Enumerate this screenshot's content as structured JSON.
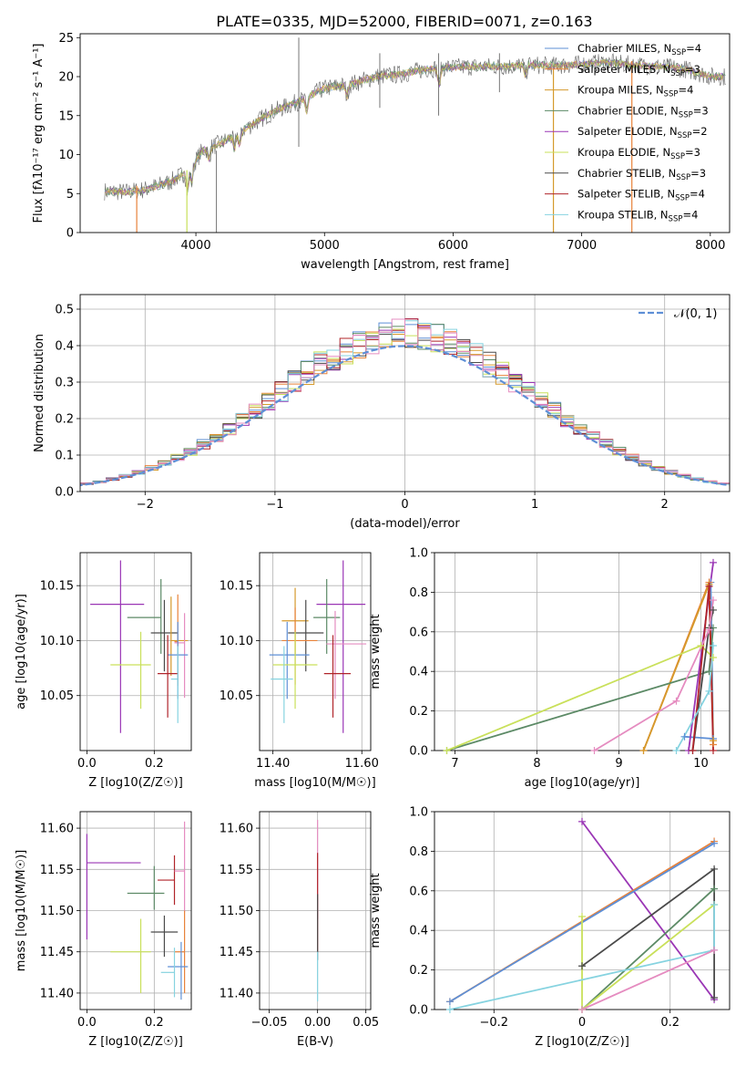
{
  "figure_title": "PLATE=0335, MJD=52000, FIBERID=0071, z=0.163",
  "colors": {
    "c0": "#5e8fd6",
    "c1": "#e8823a",
    "c2": "#d59a2c",
    "c3": "#5c8a66",
    "c4": "#9a36b5",
    "c5": "#c9e05a",
    "c6": "#4a4a4a",
    "c7": "#b0242a",
    "c8": "#86d3e0",
    "c9": "#e58cc0"
  },
  "chart_data": [
    {
      "id": "spectrum",
      "type": "line",
      "title": "PLATE=0335, MJD=52000, FIBERID=0071, z=0.163",
      "xlabel": "wavelength [Angstrom, rest frame]",
      "ylabel": "Flux [fλ10⁻¹⁷ erg cm⁻² s⁻¹ A⁻¹]",
      "xlim": [
        3100,
        8150
      ],
      "ylim": [
        0,
        25.5
      ],
      "xticks": [
        4000,
        5000,
        6000,
        7000,
        8000
      ],
      "yticks": [
        0,
        5,
        10,
        15,
        20,
        25
      ],
      "data_continuum_points": [
        [
          3290,
          5.3
        ],
        [
          3450,
          5.2
        ],
        [
          3600,
          5.5
        ],
        [
          3800,
          6.5
        ],
        [
          3950,
          8.0
        ],
        [
          4050,
          10.5
        ],
        [
          4200,
          11.5
        ],
        [
          4400,
          13.5
        ],
        [
          4600,
          15.5
        ],
        [
          4800,
          16.8
        ],
        [
          5000,
          18.5
        ],
        [
          5200,
          19.0
        ],
        [
          5400,
          20.0
        ],
        [
          5600,
          20.3
        ],
        [
          5800,
          21.0
        ],
        [
          6000,
          21.2
        ],
        [
          6200,
          21.3
        ],
        [
          6400,
          21.3
        ],
        [
          6600,
          21.5
        ],
        [
          6800,
          21.4
        ],
        [
          7000,
          21.6
        ],
        [
          7200,
          21.8
        ],
        [
          7400,
          21.5
        ],
        [
          7600,
          21.3
        ],
        [
          7800,
          21.0
        ],
        [
          8000,
          20.0
        ]
      ],
      "legend_position": "upper right",
      "legend": [
        {
          "label": "Chabrier MILES, N_SSP=4",
          "color": "#5e8fd6"
        },
        {
          "label": "Salpeter MILES, N_SSP=3",
          "color": "#e8823a"
        },
        {
          "label": "Kroupa MILES, N_SSP=4",
          "color": "#d59a2c"
        },
        {
          "label": "Chabrier ELODIE, N_SSP=3",
          "color": "#5c8a66"
        },
        {
          "label": "Salpeter ELODIE, N_SSP=2",
          "color": "#9a36b5"
        },
        {
          "label": "Kroupa ELODIE, N_SSP=3",
          "color": "#c9e05a"
        },
        {
          "label": "Chabrier STELIB, N_SSP=3",
          "color": "#4a4a4a"
        },
        {
          "label": "Salpeter STELIB, N_SSP=4",
          "color": "#b0242a"
        },
        {
          "label": "Kroupa STELIB, N_SSP=4",
          "color": "#86d3e0"
        }
      ]
    },
    {
      "id": "residuals",
      "type": "histogram",
      "xlabel": "(data-model)/error",
      "ylabel": "Normed distribution",
      "xlim": [
        -2.5,
        2.5
      ],
      "ylim": [
        0,
        0.54
      ],
      "xticks": [
        -2,
        -1,
        0,
        1,
        2
      ],
      "yticks": [
        0.0,
        0.1,
        0.2,
        0.3,
        0.4,
        0.5
      ],
      "grid": true,
      "bin_width": 0.1,
      "reference_curve": "N(0,1)",
      "legend_position": "upper right",
      "legend": [
        {
          "label": "𝒩(0, 1)",
          "color": "#5e8fd6",
          "style": "dashed"
        }
      ]
    },
    {
      "id": "age_vs_Z",
      "type": "errorbar",
      "xlabel": "Z [log10(Z/Z☉)]",
      "ylabel": "age  [log10(age/yr)]",
      "xlim": [
        -0.02,
        0.31
      ],
      "ylim": [
        10.0,
        10.18
      ],
      "xticks": [
        0.0,
        0.2
      ],
      "yticks": [
        10.05,
        10.1,
        10.15
      ],
      "points": [
        {
          "c": "c4",
          "x": 0.1,
          "y": 10.133,
          "xerr": [
            0.09,
            0.07
          ],
          "yerr": [
            0.117,
            0.04
          ]
        },
        {
          "c": "c3",
          "x": 0.22,
          "y": 10.121,
          "xerr": [
            0.1,
            0.0
          ],
          "yerr": [
            0.033,
            0.035
          ]
        },
        {
          "c": "c6",
          "x": 0.23,
          "y": 10.107,
          "xerr": [
            0.04,
            0.04
          ],
          "yerr": [
            0.035,
            0.03
          ]
        },
        {
          "c": "c2",
          "x": 0.25,
          "y": 10.1,
          "xerr": [
            0.0,
            0.05
          ],
          "yerr": [
            0.032,
            0.04
          ]
        },
        {
          "c": "c1",
          "x": 0.27,
          "y": 10.099,
          "xerr": [
            0.01,
            0.0
          ],
          "yerr": [
            0.04,
            0.043
          ]
        },
        {
          "c": "c9",
          "x": 0.29,
          "y": 10.098,
          "xerr": [
            0.03,
            0.0
          ],
          "yerr": [
            0.05,
            0.027
          ]
        },
        {
          "c": "c5",
          "x": 0.16,
          "y": 10.078,
          "xerr": [
            0.09,
            0.03
          ],
          "yerr": [
            0.04,
            0.03
          ]
        },
        {
          "c": "c0",
          "x": 0.27,
          "y": 10.087,
          "xerr": [
            0.03,
            0.03
          ],
          "yerr": [
            0.04,
            0.03
          ]
        },
        {
          "c": "c7",
          "x": 0.24,
          "y": 10.07,
          "xerr": [
            0.03,
            0.03
          ],
          "yerr": [
            0.04,
            0.035
          ]
        },
        {
          "c": "c8",
          "x": 0.27,
          "y": 10.065,
          "xerr": [
            0.02,
            0.0
          ],
          "yerr": [
            0.04,
            0.03
          ]
        }
      ]
    },
    {
      "id": "age_vs_mass",
      "type": "errorbar",
      "xlabel": "mass [log10(M/M☉)]",
      "ylabel": "",
      "xlim": [
        11.37,
        11.62
      ],
      "ylim": [
        10.0,
        10.18
      ],
      "xticks": [
        11.4,
        11.6
      ],
      "yticks": [
        10.05,
        10.1,
        10.15
      ],
      "points": [
        {
          "c": "c4",
          "x": 11.558,
          "y": 10.133,
          "xerr": [
            0.06,
            0.05
          ],
          "yerr": [
            0.117,
            0.04
          ]
        },
        {
          "c": "c3",
          "x": 11.521,
          "y": 10.121,
          "xerr": [
            0.03,
            0.03
          ],
          "yerr": [
            0.033,
            0.035
          ]
        },
        {
          "c": "c2",
          "x": 11.45,
          "y": 10.118,
          "xerr": [
            0.03,
            0.03
          ],
          "yerr": [
            0.03,
            0.03
          ]
        },
        {
          "c": "c6",
          "x": 11.474,
          "y": 10.107,
          "xerr": [
            0.04,
            0.04
          ],
          "yerr": [
            0.035,
            0.03
          ]
        },
        {
          "c": "c1",
          "x": 11.45,
          "y": 10.1,
          "xerr": [
            0.03,
            0.05
          ],
          "yerr": [
            0.04,
            0.03
          ]
        },
        {
          "c": "c9",
          "x": 11.54,
          "y": 10.097,
          "xerr": [
            0.02,
            0.07
          ],
          "yerr": [
            0.05,
            0.03
          ]
        },
        {
          "c": "c0",
          "x": 11.432,
          "y": 10.087,
          "xerr": [
            0.04,
            0.05
          ],
          "yerr": [
            0.04,
            0.03
          ]
        },
        {
          "c": "c5",
          "x": 11.45,
          "y": 10.078,
          "xerr": [
            0.05,
            0.05
          ],
          "yerr": [
            0.04,
            0.03
          ]
        },
        {
          "c": "c7",
          "x": 11.535,
          "y": 10.07,
          "xerr": [
            0.02,
            0.04
          ],
          "yerr": [
            0.04,
            0.035
          ]
        },
        {
          "c": "c8",
          "x": 11.425,
          "y": 10.065,
          "xerr": [
            0.03,
            0.02
          ],
          "yerr": [
            0.04,
            0.03
          ]
        }
      ]
    },
    {
      "id": "mass_weight_vs_age",
      "type": "line",
      "xlabel": "age  [log10(age/yr)]",
      "ylabel": "mass weight",
      "xlim": [
        6.75,
        10.35
      ],
      "ylim": [
        0,
        1.0
      ],
      "xticks": [
        7,
        8,
        9,
        10
      ],
      "yticks": [
        0.0,
        0.2,
        0.4,
        0.6,
        0.8,
        1.0
      ],
      "grid": true,
      "series": [
        {
          "c": "c0",
          "points": [
            [
              9.8,
              0.07
            ],
            [
              10.15,
              0.06
            ],
            [
              10.12,
              0.85
            ]
          ]
        },
        {
          "c": "c1",
          "points": [
            [
              9.3,
              0.0
            ],
            [
              10.1,
              0.85
            ],
            [
              10.15,
              0.03
            ]
          ]
        },
        {
          "c": "c2",
          "points": [
            [
              9.3,
              0.0
            ],
            [
              10.1,
              0.84
            ],
            [
              10.15,
              0.05
            ]
          ]
        },
        {
          "c": "c3",
          "points": [
            [
              6.9,
              0.0
            ],
            [
              10.1,
              0.4
            ],
            [
              10.15,
              0.62
            ]
          ]
        },
        {
          "c": "c4",
          "points": [
            [
              9.85,
              0.0
            ],
            [
              10.15,
              0.95
            ]
          ]
        },
        {
          "c": "c5",
          "points": [
            [
              6.9,
              0.0
            ],
            [
              10.0,
              0.53
            ],
            [
              10.15,
              0.47
            ]
          ]
        },
        {
          "c": "c6",
          "points": [
            [
              9.9,
              0.0
            ],
            [
              10.1,
              0.62
            ],
            [
              10.15,
              0.71
            ]
          ]
        },
        {
          "c": "c7",
          "points": [
            [
              9.9,
              0.0
            ],
            [
              10.1,
              0.83
            ],
            [
              10.15,
              0.0
            ]
          ]
        },
        {
          "c": "c8",
          "points": [
            [
              9.7,
              0.0
            ],
            [
              10.1,
              0.3
            ],
            [
              10.15,
              0.53
            ]
          ]
        },
        {
          "c": "c9",
          "points": [
            [
              8.7,
              0.0
            ],
            [
              9.7,
              0.25
            ],
            [
              10.1,
              0.61
            ],
            [
              10.15,
              0.76
            ]
          ]
        }
      ]
    },
    {
      "id": "mass_vs_Z",
      "type": "errorbar",
      "xlabel": "Z [log10(Z/Z☉)]",
      "ylabel": "mass [log10(M/M☉)]",
      "xlim": [
        -0.02,
        0.31
      ],
      "ylim": [
        11.38,
        11.62
      ],
      "xticks": [
        0.0,
        0.2
      ],
      "yticks": [
        11.4,
        11.45,
        11.5,
        11.55,
        11.6
      ],
      "points": [
        {
          "c": "c4",
          "x": 0.0,
          "y": 11.558,
          "xerr": [
            0.0,
            0.16
          ],
          "yerr": [
            0.093,
            0.035
          ]
        },
        {
          "c": "c3",
          "x": 0.2,
          "y": 11.521,
          "xerr": [
            0.08,
            0.03
          ],
          "yerr": [
            0.02,
            0.033
          ]
        },
        {
          "c": "c7",
          "x": 0.26,
          "y": 11.537,
          "xerr": [
            0.05,
            0.0
          ],
          "yerr": [
            0.03,
            0.03
          ]
        },
        {
          "c": "c9",
          "x": 0.29,
          "y": 11.548,
          "xerr": [
            0.03,
            0.0
          ],
          "yerr": [
            0.05,
            0.06
          ]
        },
        {
          "c": "c6",
          "x": 0.23,
          "y": 11.474,
          "xerr": [
            0.04,
            0.04
          ],
          "yerr": [
            0.03,
            0.02
          ]
        },
        {
          "c": "c1",
          "x": 0.29,
          "y": 11.45,
          "xerr": [
            0.03,
            0.0
          ],
          "yerr": [
            0.05,
            0.05
          ]
        },
        {
          "c": "c5",
          "x": 0.16,
          "y": 11.45,
          "xerr": [
            0.09,
            0.03
          ],
          "yerr": [
            0.05,
            0.04
          ]
        },
        {
          "c": "c0",
          "x": 0.28,
          "y": 11.432,
          "xerr": [
            0.04,
            0.02
          ],
          "yerr": [
            0.04,
            0.03
          ]
        },
        {
          "c": "c8",
          "x": 0.26,
          "y": 11.425,
          "xerr": [
            0.04,
            0.0
          ],
          "yerr": [
            0.03,
            0.03
          ]
        }
      ]
    },
    {
      "id": "mass_vs_ebv",
      "type": "errorbar",
      "xlabel": "E(B-V)",
      "ylabel": "",
      "xlim": [
        -0.06,
        0.055
      ],
      "ylim": [
        11.38,
        11.62
      ],
      "xticks": [
        -0.05,
        0.0,
        0.05
      ],
      "yticks": [
        11.4,
        11.45,
        11.5,
        11.55,
        11.6
      ],
      "points": [
        {
          "c": "c9",
          "x": 0.0,
          "y": 11.55,
          "xerr": [
            0.0,
            0.0
          ],
          "yerr": [
            0.06,
            0.06
          ]
        },
        {
          "c": "c7",
          "x": 0.0,
          "y": 11.53,
          "xerr": [
            0.0,
            0.0
          ],
          "yerr": [
            0.08,
            0.04
          ]
        },
        {
          "c": "c6",
          "x": 0.0,
          "y": 11.48,
          "xerr": [
            0.0,
            0.0
          ],
          "yerr": [
            0.04,
            0.04
          ]
        },
        {
          "c": "c8",
          "x": 0.0,
          "y": 11.42,
          "xerr": [
            0.0,
            0.0
          ],
          "yerr": [
            0.03,
            0.03
          ]
        }
      ]
    },
    {
      "id": "mass_weight_vs_Z",
      "type": "line",
      "xlabel": "Z [log10(Z/Z☉)]",
      "ylabel": "mass weight",
      "xlim": [
        -0.335,
        0.335
      ],
      "ylim": [
        0,
        1.0
      ],
      "xticks": [
        -0.2,
        0.0,
        0.2
      ],
      "yticks": [
        0.0,
        0.2,
        0.4,
        0.6,
        0.8,
        1.0
      ],
      "grid": true,
      "series": [
        {
          "c": "c4",
          "points": [
            [
              0.0,
              0.95
            ],
            [
              0.3,
              0.05
            ]
          ]
        },
        {
          "c": "c1",
          "points": [
            [
              -0.3,
              0.04
            ],
            [
              0.3,
              0.85
            ]
          ]
        },
        {
          "c": "c0",
          "points": [
            [
              -0.3,
              0.04
            ],
            [
              0.3,
              0.84
            ]
          ]
        },
        {
          "c": "c6",
          "points": [
            [
              0.0,
              0.22
            ],
            [
              0.3,
              0.71
            ],
            [
              0.3,
              0.06
            ]
          ]
        },
        {
          "c": "c3",
          "points": [
            [
              0.0,
              0.0
            ],
            [
              0.3,
              0.61
            ]
          ]
        },
        {
          "c": "c5",
          "points": [
            [
              0.0,
              0.47
            ],
            [
              0.0,
              0.0
            ],
            [
              0.3,
              0.53
            ]
          ]
        },
        {
          "c": "c8",
          "points": [
            [
              -0.3,
              0.0
            ],
            [
              0.3,
              0.3
            ],
            [
              0.3,
              0.53
            ]
          ]
        },
        {
          "c": "c9",
          "points": [
            [
              0.0,
              0.0
            ],
            [
              0.3,
              0.3
            ]
          ]
        }
      ]
    }
  ]
}
